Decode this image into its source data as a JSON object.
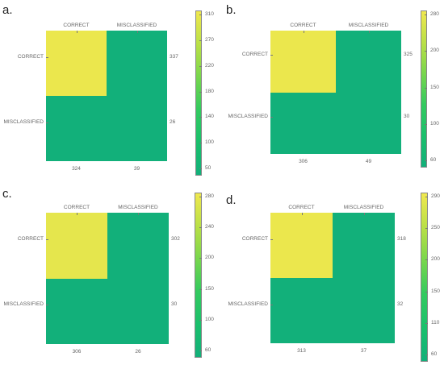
{
  "chart_data": [
    {
      "type": "heatmap",
      "panel_label": "a.",
      "columns": [
        "CORRECT",
        "MISCLASSIFIED"
      ],
      "rows": [
        "CORRECT",
        "MISCLASSIFIED"
      ],
      "cells": [
        [
          310,
          27
        ],
        [
          14,
          12
        ]
      ],
      "row_totals": [
        "337",
        "26"
      ],
      "col_totals": [
        "324",
        "39"
      ],
      "colorbar": {
        "ticks": [
          "310",
          "270",
          "220",
          "180",
          "140",
          "100",
          "50"
        ],
        "min": 40,
        "max": 315
      }
    },
    {
      "type": "heatmap",
      "panel_label": "b.",
      "columns": [
        "CORRECT",
        "MISCLASSIFIED"
      ],
      "rows": [
        "CORRECT",
        "MISCLASSIFIED"
      ],
      "cells": [
        [
          285,
          40
        ],
        [
          21,
          9
        ]
      ],
      "row_totals": [
        "325",
        "30"
      ],
      "col_totals": [
        "306",
        "49"
      ],
      "colorbar": {
        "ticks": [
          "280",
          "200",
          "150",
          "100",
          "60"
        ],
        "min": 40,
        "max": 290
      }
    },
    {
      "type": "heatmap",
      "panel_label": "c.",
      "columns": [
        "CORRECT",
        "MISCLASSIFIED"
      ],
      "rows": [
        "CORRECT",
        "MISCLASSIFIED"
      ],
      "cells": [
        [
          280,
          22
        ],
        [
          26,
          4
        ]
      ],
      "row_totals": [
        "302",
        "30"
      ],
      "col_totals": [
        "306",
        "26"
      ],
      "colorbar": {
        "ticks": [
          "280",
          "240",
          "200",
          "150",
          "100",
          "60"
        ],
        "min": 40,
        "max": 290
      }
    },
    {
      "type": "heatmap",
      "panel_label": "d.",
      "columns": [
        "CORRECT",
        "MISCLASSIFIED"
      ],
      "rows": [
        "CORRECT",
        "MISCLASSIFIED"
      ],
      "cells": [
        [
          290,
          28
        ],
        [
          23,
          9
        ]
      ],
      "row_totals": [
        "318",
        "32"
      ],
      "col_totals": [
        "313",
        "37"
      ],
      "colorbar": {
        "ticks": [
          "290",
          "250",
          "200",
          "150",
          "110",
          "60"
        ],
        "min": 40,
        "max": 295
      }
    }
  ]
}
